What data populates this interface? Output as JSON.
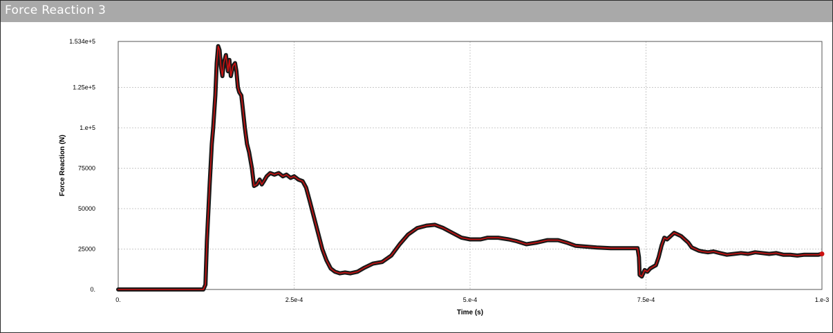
{
  "window": {
    "title": "Force Reaction 3"
  },
  "colors": {
    "title_bar": "#a9a9a9",
    "curve_outer": "#1a1a1a",
    "curve_inner": "#cc1111",
    "grid": "#c8c8c8"
  },
  "chart_data": {
    "type": "line",
    "title": "",
    "xlabel": "Time (s)",
    "ylabel": "Force Reaction (N)",
    "xlim": [
      0,
      0.001
    ],
    "ylim": [
      0,
      153400
    ],
    "x_ticks": [
      0,
      0.00025,
      0.0005,
      0.00075,
      0.001
    ],
    "x_tick_labels": [
      "0.",
      "2.5e-4",
      "5.e-4",
      "7.5e-4",
      "1.e-3"
    ],
    "y_ticks": [
      0,
      25000,
      50000,
      75000,
      100000,
      125000,
      153400
    ],
    "y_tick_labels": [
      "0.",
      "25000",
      "50000",
      "75000",
      "1.e+5",
      "1.25e+5",
      "1.534e+5"
    ],
    "grid": true,
    "legend": "none",
    "series": [
      {
        "x": [
          0,
          0.000121,
          0.000124,
          0.000126,
          0.00013,
          0.000133,
          0.000135,
          0.000138,
          0.00014,
          0.000142,
          0.000144,
          0.000146,
          0.000148,
          0.00015,
          0.000153,
          0.000156,
          0.000158,
          0.00016,
          0.000163,
          0.000166,
          0.000168,
          0.00017,
          0.000172,
          0.000175,
          0.000177,
          0.00018,
          0.000183,
          0.000186,
          0.00019,
          0.000193,
          0.000197,
          0.000201,
          0.000204,
          0.000207,
          0.000211,
          0.000216,
          0.000222,
          0.000228,
          0.000234,
          0.000239,
          0.000245,
          0.00025,
          0.000256,
          0.000262,
          0.000267,
          0.000272,
          0.000278,
          0.000284,
          0.00029,
          0.000296,
          0.000302,
          0.000308,
          0.000315,
          0.000322,
          0.00033,
          0.00034,
          0.00035,
          0.000362,
          0.000375,
          0.000388,
          0.0004,
          0.000412,
          0.000425,
          0.000438,
          0.00045,
          0.000462,
          0.000475,
          0.000488,
          0.0005,
          0.000515,
          0.000525,
          0.00054,
          0.000555,
          0.000565,
          0.00058,
          0.000595,
          0.00061,
          0.000625,
          0.000637,
          0.00065,
          0.000665,
          0.00068,
          0.0007,
          0.00072,
          0.000738,
          0.00074,
          0.000741,
          0.000744,
          0.000748,
          0.000752,
          0.000756,
          0.00076,
          0.000764,
          0.000768,
          0.000772,
          0.000776,
          0.00078,
          0.000785,
          0.00079,
          0.000795,
          0.0008,
          0.000805,
          0.00081,
          0.000815,
          0.00082,
          0.000825,
          0.00083,
          0.000838,
          0.000846,
          0.000855,
          0.000865,
          0.000875,
          0.000885,
          0.000895,
          0.000905,
          0.000915,
          0.000925,
          0.000935,
          0.000945,
          0.000955,
          0.000965,
          0.000975,
          0.000985,
          0.000995,
          0.001
        ],
        "y": [
          0,
          0,
          3000,
          30000,
          65000,
          90000,
          100000,
          120000,
          140000,
          150500,
          148000,
          138000,
          132000,
          140000,
          145000,
          135000,
          142000,
          132000,
          138000,
          140000,
          135000,
          125000,
          122000,
          120000,
          112000,
          100000,
          90000,
          85000,
          75000,
          64000,
          65000,
          68000,
          65000,
          67000,
          70000,
          72000,
          71000,
          72000,
          70000,
          71000,
          69000,
          70000,
          68000,
          67000,
          63000,
          55000,
          45000,
          35000,
          25000,
          18000,
          13000,
          11000,
          10000,
          10500,
          10000,
          11000,
          13500,
          16000,
          17000,
          21000,
          28000,
          34000,
          38000,
          39500,
          40000,
          38000,
          35000,
          32000,
          31000,
          31000,
          32000,
          32000,
          31000,
          30000,
          28000,
          29000,
          30500,
          30500,
          29000,
          27000,
          26500,
          26000,
          25500,
          25500,
          25500,
          20000,
          9000,
          8000,
          12000,
          11000,
          13000,
          14000,
          15000,
          20000,
          27000,
          32000,
          31000,
          33000,
          35000,
          34000,
          33000,
          31000,
          29000,
          26000,
          25000,
          24000,
          23500,
          23000,
          23500,
          22500,
          21500,
          22000,
          22500,
          22000,
          23000,
          22500,
          22000,
          22500,
          21500,
          21500,
          21000,
          21500,
          21500,
          21500,
          22000
        ]
      }
    ]
  }
}
